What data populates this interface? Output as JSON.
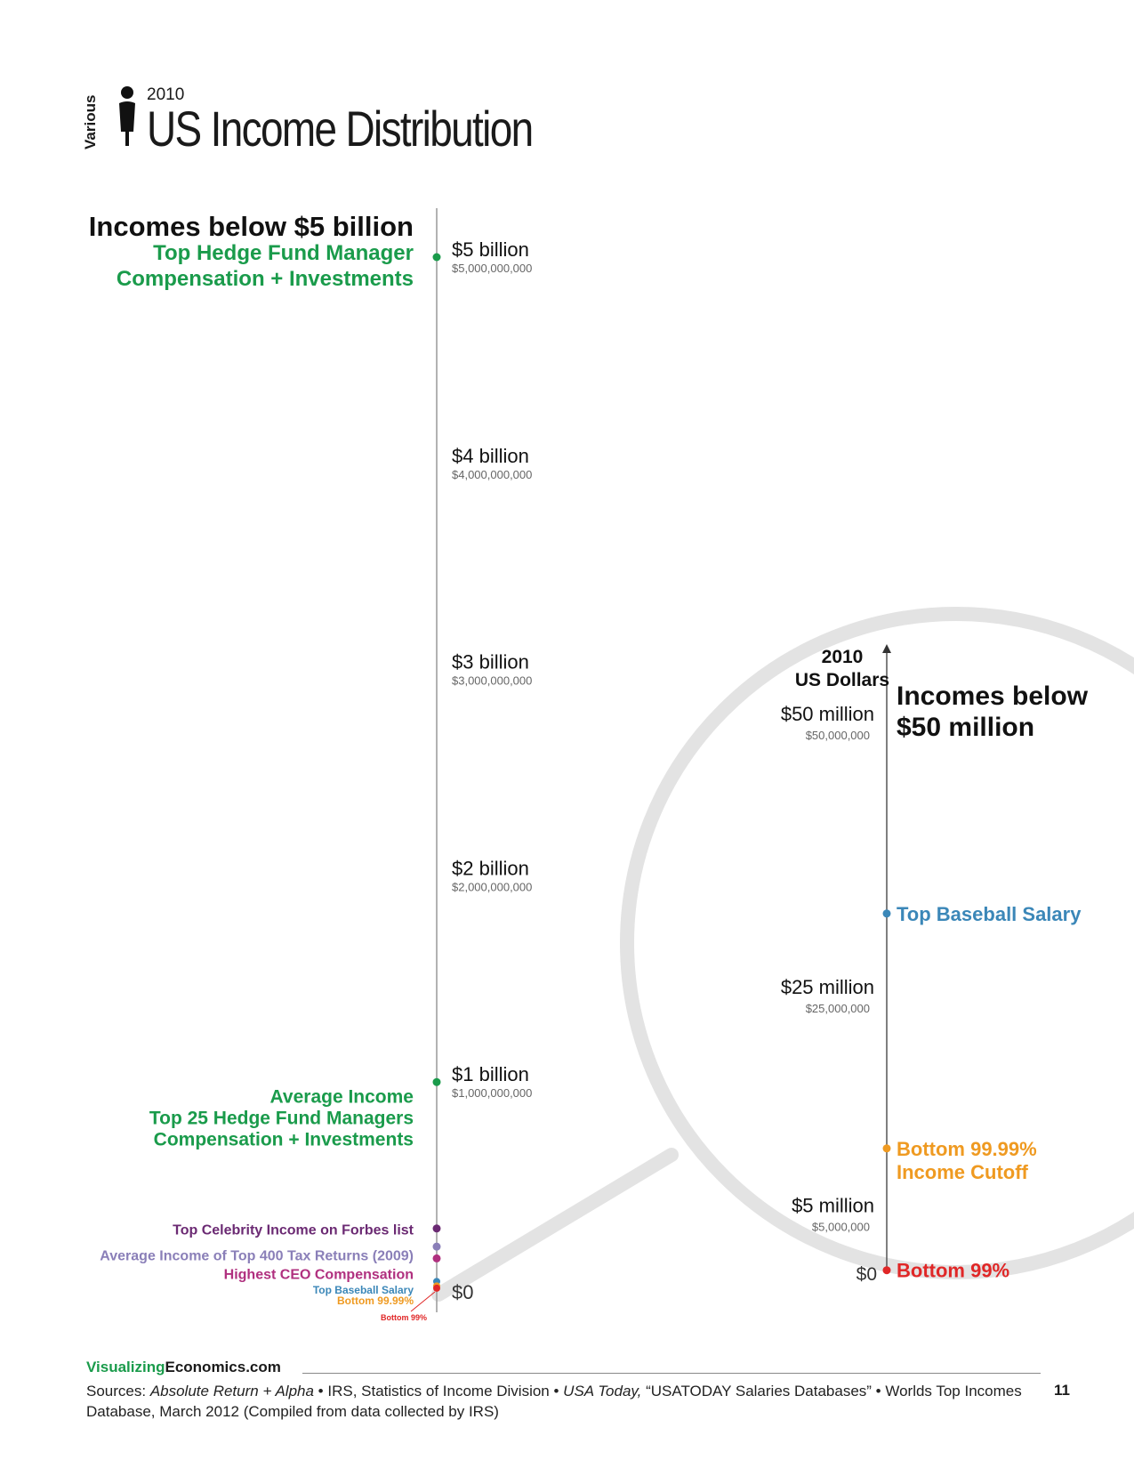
{
  "header": {
    "year": "2010",
    "title": "US Income Distribution",
    "category": "Various"
  },
  "colors": {
    "hedge_green": "#1a9b4b",
    "celebrity_purple": "#6b2a73",
    "tax_lavender": "#8a7fb8",
    "ceo_magenta": "#b0307f",
    "baseball_blue": "#3b87b8",
    "cutoff_orange": "#ef9a21",
    "bottom_red": "#e02727",
    "axis_gray": "#999999",
    "magnifier_gray": "#e3e3e3"
  },
  "chart_data": [
    {
      "type": "scatter",
      "heading": "Incomes below $5 billion",
      "axis_unit": "2010 US Dollars",
      "ylim": [
        0,
        5000000000
      ],
      "ticks": [
        {
          "value": 5000000000,
          "label": "$5 billion",
          "sub": "$5,000,000,000"
        },
        {
          "value": 4000000000,
          "label": "$4 billion",
          "sub": "$4,000,000,000"
        },
        {
          "value": 3000000000,
          "label": "$3 billion",
          "sub": "$3,000,000,000"
        },
        {
          "value": 2000000000,
          "label": "$2 billion",
          "sub": "$2,000,000,000"
        },
        {
          "value": 1000000000,
          "label": "$1 billion",
          "sub": "$1,000,000,000"
        },
        {
          "value": 0,
          "label": "$0",
          "sub": ""
        }
      ],
      "points": [
        {
          "label": "Top Hedge Fund Manager Compensation + Investments",
          "lines": [
            "Top Hedge Fund Manager",
            "Compensation + Investments"
          ],
          "value": 5000000000,
          "color": "#1a9b4b"
        },
        {
          "label": "Average Income Top 25 Hedge Fund Managers Compensation + Investments",
          "lines": [
            "Average Income",
            "Top 25 Hedge Fund Managers",
            "Compensation + Investments"
          ],
          "value": 1000000000,
          "color": "#1a9b4b"
        },
        {
          "label": "Top Celebrity Income on Forbes list",
          "lines": [
            "Top Celebrity Income on Forbes list"
          ],
          "value": 290000000,
          "color": "#6b2a73"
        },
        {
          "label": "Average Income of Top 400 Tax Returns (2009)",
          "lines": [
            "Average Income of Top 400 Tax Returns (2009)"
          ],
          "value": 202000000,
          "color": "#8a7fb8"
        },
        {
          "label": "Highest CEO Compensation",
          "lines": [
            "Highest CEO Compensation"
          ],
          "value": 145000000,
          "color": "#b0307f"
        },
        {
          "label": "Top Baseball Salary",
          "lines": [
            "Top Baseball Salary"
          ],
          "value": 33000000,
          "color": "#3b87b8"
        },
        {
          "label": "Bottom 99.99%",
          "lines": [
            "Bottom 99.99%"
          ],
          "value": 11500000,
          "color": "#ef9a21"
        },
        {
          "label": "Bottom 99%",
          "lines": [
            "Bottom 99%"
          ],
          "value": 350000,
          "color": "#e02727"
        }
      ]
    },
    {
      "type": "scatter",
      "heading_lines": [
        "Incomes below",
        "$50 million"
      ],
      "axis_unit_lines": [
        "2010",
        "US Dollars"
      ],
      "ylim": [
        0,
        50000000
      ],
      "ticks": [
        {
          "value": 50000000,
          "label": "$50 million",
          "sub": "$50,000,000"
        },
        {
          "value": 25000000,
          "label": "$25 million",
          "sub": "$25,000,000"
        },
        {
          "value": 5000000,
          "label": "$5 million",
          "sub": "$5,000,000"
        },
        {
          "value": 0,
          "label": "$0",
          "sub": ""
        }
      ],
      "points": [
        {
          "label": "Top Baseball Salary",
          "lines": [
            "Top Baseball Salary"
          ],
          "value": 33000000,
          "color": "#3b87b8"
        },
        {
          "label": "Bottom 99.99% Income Cutoff",
          "lines": [
            "Bottom 99.99%",
            "Income Cutoff"
          ],
          "value": 11500000,
          "color": "#ef9a21"
        },
        {
          "label": "Bottom 99%",
          "lines": [
            "Bottom 99%"
          ],
          "value": 350000,
          "color": "#e02727"
        }
      ]
    }
  ],
  "footer": {
    "site_green": "Visualizing",
    "site_rest": "Economics.com",
    "sources_prefix": "Sources: ",
    "source_1": "Absolute Return + Alpha",
    "sources_mid_1": " • IRS, Statistics of Income Division • ",
    "source_2": "USA Today,",
    "sources_mid_2": " “USATODAY Salaries Databases” • Worlds Top Incomes Database, March 2012 (Compiled from data collected by IRS)",
    "page_number": "11"
  }
}
